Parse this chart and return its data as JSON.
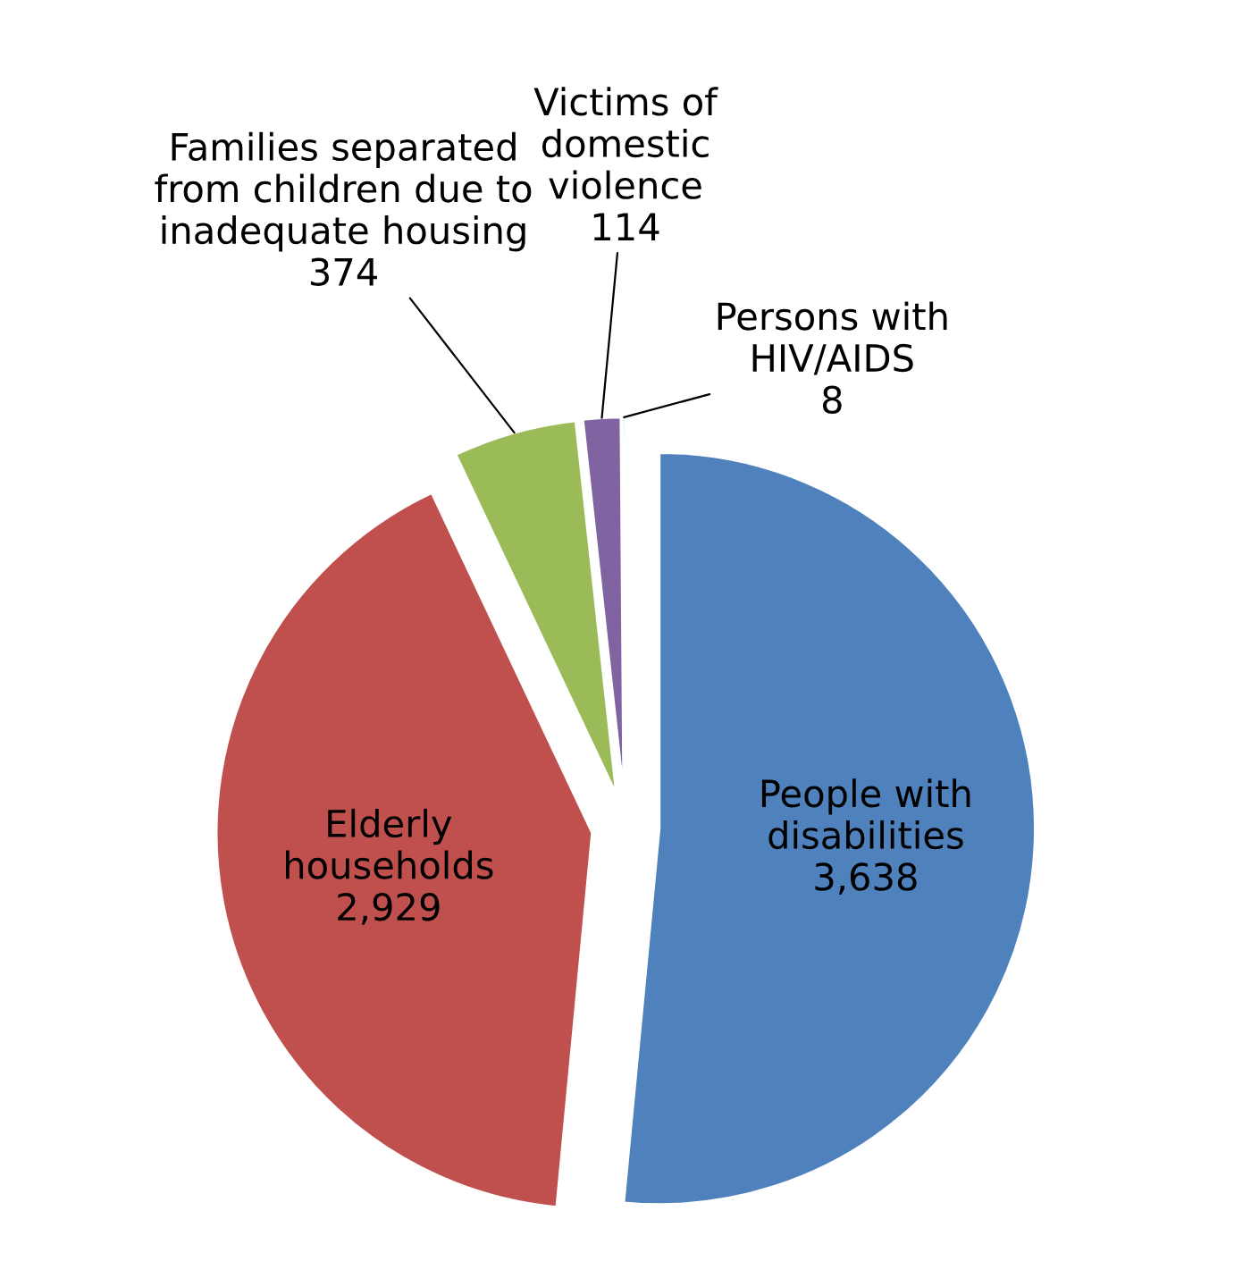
{
  "chart_data": {
    "type": "pie",
    "categories": [
      "People with\ndisabilities",
      "Elderly\nhouseholds",
      "Families separated\nfrom children due to\ninadequate housing",
      "Victims of\ndomestic\nviolence",
      "Persons with\nHIV/AIDS"
    ],
    "values": [
      3638,
      2929,
      374,
      114,
      8
    ],
    "value_labels": [
      "3,638",
      "2,929",
      "374",
      "114",
      "8"
    ],
    "colors": [
      "#4f81bd",
      "#c0504d",
      "#9bbb59",
      "#8064a2",
      "#4bacc6"
    ]
  }
}
